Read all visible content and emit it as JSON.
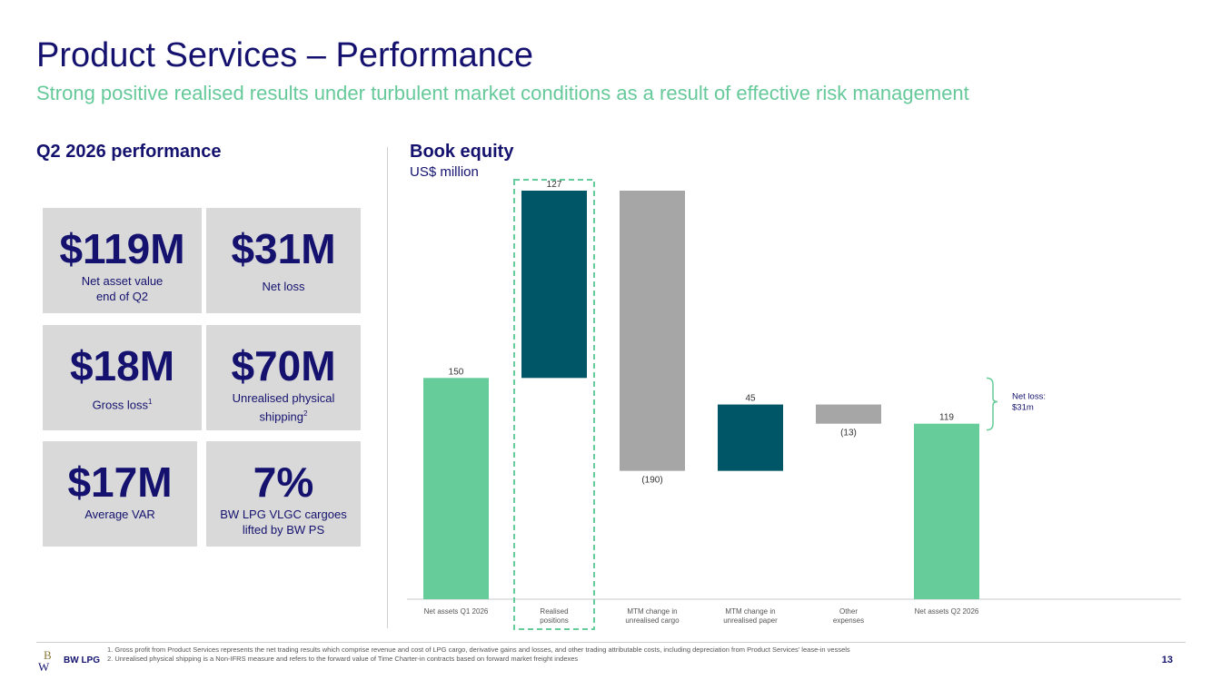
{
  "header": {
    "title": "Product Services – Performance",
    "subtitle": "Strong positive realised results under turbulent market conditions as a result of effective risk management"
  },
  "left": {
    "heading": "Q2 2026 performance",
    "tiles": [
      {
        "value": "$119M",
        "label": "Net asset value\nend of Q2"
      },
      {
        "value": "$31M",
        "label": "Net loss"
      },
      {
        "value": "$18M",
        "label": "Gross loss",
        "sup": "1"
      },
      {
        "value": "$70M",
        "label": "Unrealised physical\nshipping",
        "sup": "2"
      },
      {
        "value": "$17M",
        "label": "Average VAR"
      },
      {
        "value": "7%",
        "label": "BW LPG VLGC cargoes\nlifted by BW PS"
      }
    ]
  },
  "right": {
    "heading": "Book equity",
    "unit": "US$ million"
  },
  "chart_data": {
    "type": "bar",
    "subtype": "waterfall",
    "categories": [
      "Net assets Q1 2026",
      "Realised positions",
      "MTM change in unrealised cargo",
      "MTM change in unrealised paper",
      "Other expenses",
      "Net assets Q2 2026"
    ],
    "category_lines": [
      [
        "Net assets Q1 2026"
      ],
      [
        "Realised",
        "positions"
      ],
      [
        "MTM change in",
        "unrealised cargo"
      ],
      [
        "MTM change in",
        "unrealised paper"
      ],
      [
        "Other",
        "expenses"
      ],
      [
        "Net assets Q2 2026"
      ]
    ],
    "values": [
      150,
      127,
      -190,
      45,
      -13,
      119
    ],
    "value_labels": [
      "150",
      "127",
      "(190)",
      "45",
      "(13)",
      "119"
    ],
    "bar_kinds": [
      "total",
      "delta",
      "delta",
      "delta",
      "delta",
      "total"
    ],
    "highlight_index": 1,
    "annotation": {
      "lines": [
        "Net loss:",
        "$31m"
      ]
    },
    "colors": {
      "total": "#66cc99",
      "positive": "#005566",
      "negative": "#a6a6a6",
      "highlight_border": "#66cc99"
    },
    "ylim": [
      0,
      277
    ]
  },
  "footer": {
    "logo_text": "BW LPG",
    "footnotes": [
      "1.  Gross profit from Product Services represents the net trading results which comprise revenue and cost of LPG cargo, derivative gains and losses, and other trading attributable costs, including depreciation from Product Services' lease-in vessels",
      "2.  Unrealised physical shipping is a Non-IFRS measure and refers to the forward value of Time Charter-in contracts based on forward market freight indexes"
    ],
    "page_number": "13"
  }
}
